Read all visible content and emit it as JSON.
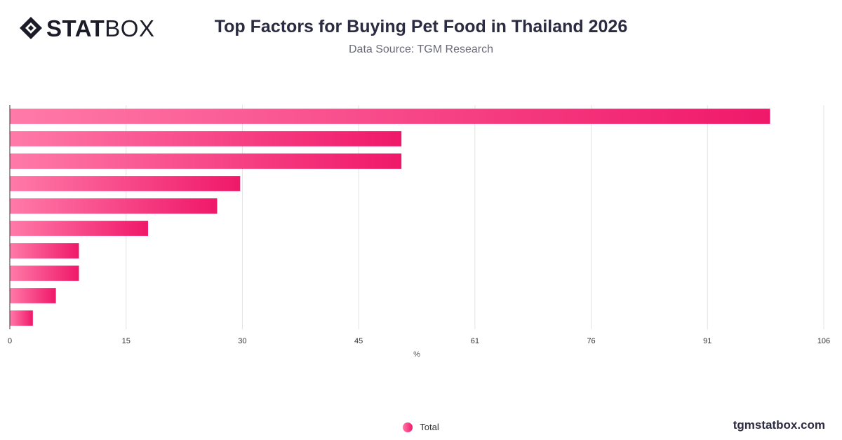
{
  "brand": {
    "logo_strong": "STAT",
    "logo_light": "BOX",
    "watermark": "tgmstatbox.com"
  },
  "chart_data": {
    "type": "bar",
    "orientation": "horizontal",
    "title": "Top Factors for Buying Pet Food in Thailand 2026",
    "subtitle": "Data Source: TGM Research",
    "xlabel": "%",
    "ylabel": "",
    "categories": [
      "",
      "",
      "",
      "",
      "",
      "",
      "",
      "",
      "",
      ""
    ],
    "series": [
      {
        "name": "Total",
        "values": [
          99,
          51,
          51,
          30,
          27,
          18,
          9,
          9,
          6,
          3
        ]
      }
    ],
    "xlim": [
      0,
      106
    ],
    "xticks": [
      "0",
      "15",
      "30",
      "45",
      "61",
      "76",
      "91",
      "106"
    ],
    "grid": true,
    "legend_position": "bottom-center",
    "colors": {
      "bar_start": "#ff7aa8",
      "bar_end": "#f0186a",
      "grid": "#e3e3e3",
      "axis": "#333333"
    }
  }
}
